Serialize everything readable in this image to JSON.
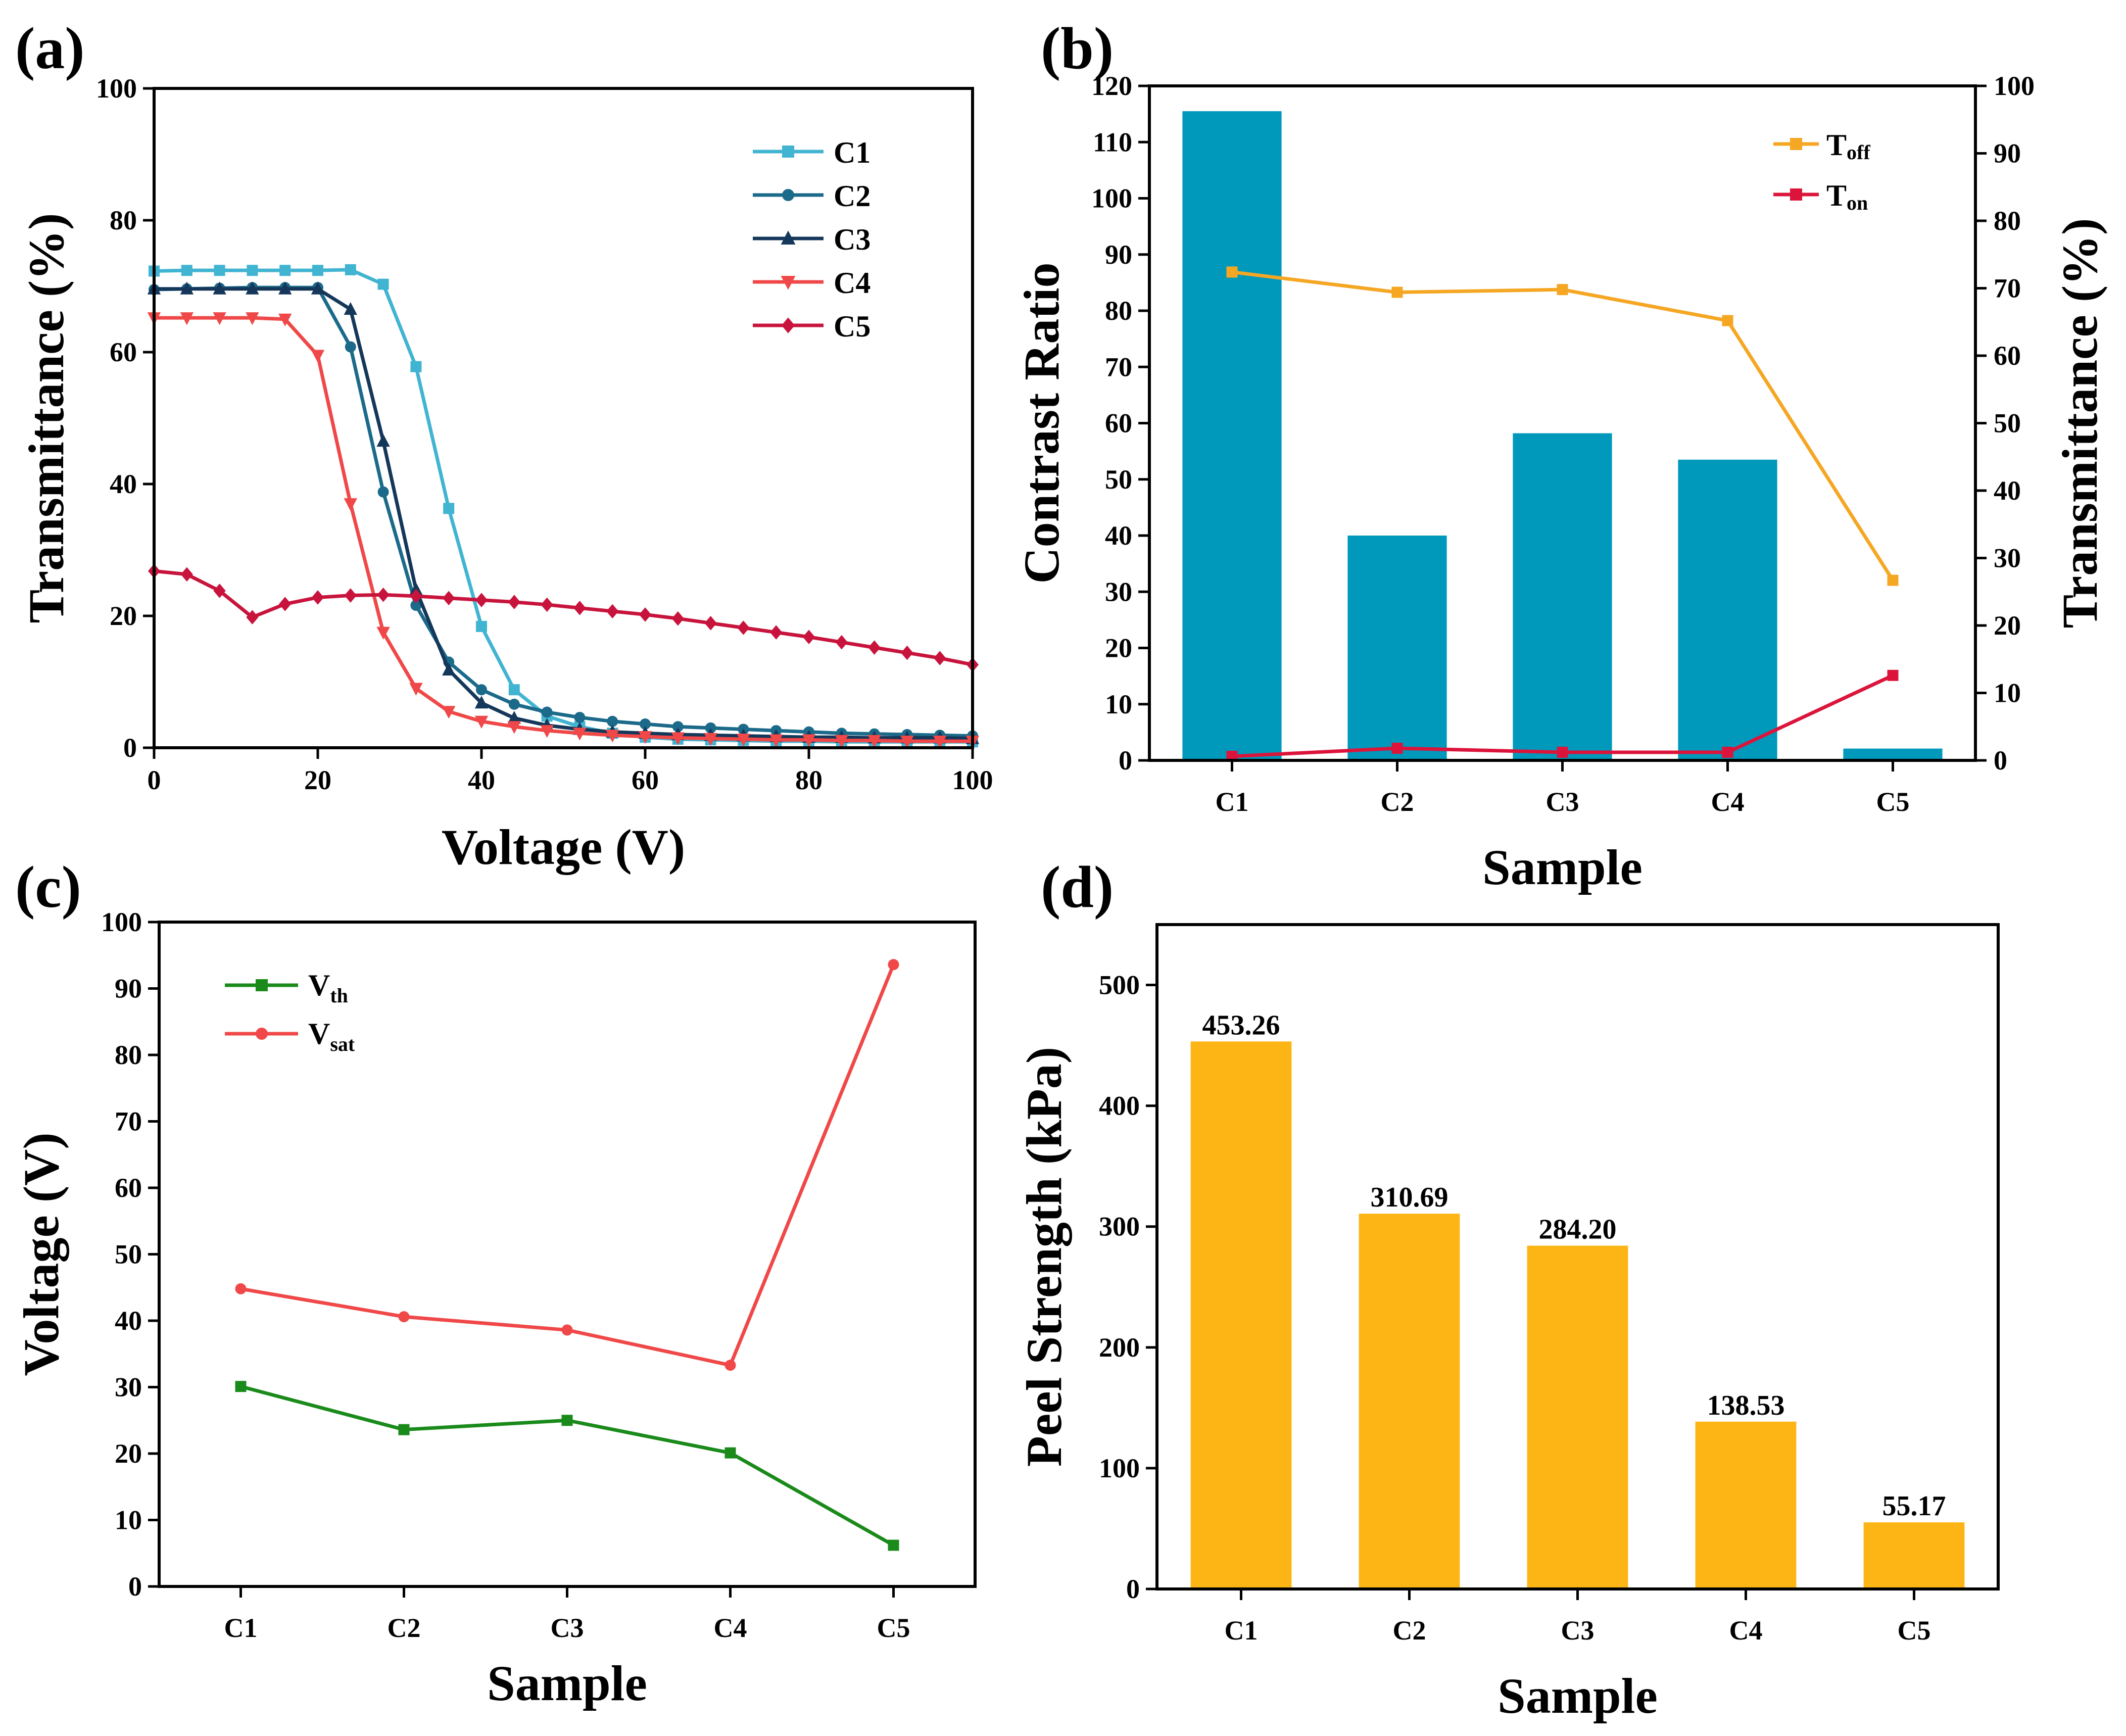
{
  "chart_data": [
    {
      "panel": "(a)",
      "type": "line",
      "xlabel": "Voltage (V)",
      "ylabel": "Transmittance (%)",
      "xlim": [
        0,
        100
      ],
      "ylim": [
        0,
        100
      ],
      "xticks": [
        0,
        20,
        40,
        60,
        80,
        100
      ],
      "yticks": [
        0,
        20,
        40,
        60,
        80,
        100
      ],
      "legend_position": "top-right",
      "series": [
        {
          "name": "C1",
          "color": "#41B4D2",
          "marker": "square",
          "x": [
            0,
            4,
            8,
            12,
            16,
            20,
            24,
            28,
            32,
            36,
            40,
            44,
            48,
            52,
            56,
            60,
            64,
            68,
            72,
            76,
            80,
            84,
            88,
            92,
            96,
            100
          ],
          "y": [
            72.3,
            72.4,
            72.4,
            72.4,
            72.4,
            72.4,
            72.5,
            70.3,
            57.8,
            36.3,
            18.4,
            8.8,
            4.8,
            3.2,
            2.2,
            1.6,
            1.3,
            1.2,
            1.1,
            1.0,
            1.0,
            0.9,
            0.9,
            0.9,
            0.9,
            0.9
          ]
        },
        {
          "name": "C2",
          "color": "#1B6A8A",
          "marker": "circle",
          "x": [
            0,
            4,
            8,
            12,
            16,
            20,
            24,
            28,
            32,
            36,
            40,
            44,
            48,
            52,
            56,
            60,
            64,
            68,
            72,
            76,
            80,
            84,
            88,
            92,
            96,
            100
          ],
          "y": [
            69.5,
            69.6,
            69.7,
            69.8,
            69.8,
            69.8,
            60.8,
            38.8,
            21.6,
            13.0,
            8.8,
            6.6,
            5.4,
            4.6,
            4.0,
            3.6,
            3.2,
            3.0,
            2.8,
            2.6,
            2.4,
            2.2,
            2.1,
            2.0,
            1.9,
            1.8
          ]
        },
        {
          "name": "C3",
          "color": "#14375A",
          "marker": "triangle-up",
          "x": [
            0,
            4,
            8,
            12,
            16,
            20,
            24,
            28,
            32,
            36,
            40,
            44,
            48,
            52,
            56,
            60,
            64,
            68,
            72,
            76,
            80,
            84,
            88,
            92,
            96,
            100
          ],
          "y": [
            69.6,
            69.6,
            69.6,
            69.6,
            69.6,
            69.6,
            66.5,
            46.5,
            24.0,
            11.8,
            6.8,
            4.5,
            3.4,
            2.8,
            2.4,
            2.2,
            2.0,
            1.9,
            1.8,
            1.7,
            1.6,
            1.6,
            1.5,
            1.5,
            1.5,
            1.4
          ]
        },
        {
          "name": "C4",
          "color": "#F04848",
          "marker": "triangle-down",
          "x": [
            0,
            4,
            8,
            12,
            16,
            20,
            24,
            28,
            32,
            36,
            40,
            44,
            48,
            52,
            56,
            60,
            64,
            68,
            72,
            76,
            80,
            84,
            88,
            92,
            96,
            100
          ],
          "y": [
            65.2,
            65.2,
            65.2,
            65.2,
            65.0,
            59.5,
            37.0,
            17.5,
            9.0,
            5.5,
            4.0,
            3.2,
            2.6,
            2.2,
            1.9,
            1.7,
            1.5,
            1.4,
            1.3,
            1.2,
            1.2,
            1.1,
            1.1,
            1.0,
            1.0,
            1.0
          ]
        },
        {
          "name": "C5",
          "color": "#C8143C",
          "marker": "diamond",
          "x": [
            0,
            4,
            8,
            12,
            16,
            20,
            24,
            28,
            32,
            36,
            40,
            44,
            48,
            52,
            56,
            60,
            64,
            68,
            72,
            76,
            80,
            84,
            88,
            92,
            96,
            100
          ],
          "y": [
            26.8,
            26.3,
            23.8,
            19.8,
            21.8,
            22.8,
            23.1,
            23.2,
            23.0,
            22.7,
            22.4,
            22.1,
            21.7,
            21.2,
            20.7,
            20.2,
            19.6,
            18.9,
            18.2,
            17.5,
            16.8,
            16.0,
            15.2,
            14.4,
            13.6,
            12.6
          ]
        }
      ]
    },
    {
      "panel": "(b)",
      "type": "bar",
      "xlabel": "Sample",
      "ylabel": "Contrast Ratio",
      "y2label": "Transmittance (%)",
      "categories": [
        "C1",
        "C2",
        "C3",
        "C4",
        "C5"
      ],
      "ylim": [
        0,
        120
      ],
      "yticks": [
        0,
        10,
        20,
        30,
        40,
        50,
        60,
        70,
        80,
        90,
        100,
        110,
        120
      ],
      "y2lim": [
        0,
        100
      ],
      "y2ticks": [
        0,
        10,
        20,
        30,
        40,
        50,
        60,
        70,
        80,
        90,
        100
      ],
      "bar_color": "#0099BB",
      "values": [
        115.5,
        40.0,
        58.2,
        53.5,
        2.1
      ],
      "legend_position": "top-right",
      "line_series": [
        {
          "name": "Toff",
          "label_main": "T",
          "label_sub": "off",
          "color": "#F5A623",
          "marker": "square",
          "axis": "right",
          "values": [
            72.4,
            69.4,
            69.8,
            65.2,
            26.7
          ]
        },
        {
          "name": "Ton",
          "label_main": "T",
          "label_sub": "on",
          "color": "#DC143C",
          "marker": "square",
          "axis": "right",
          "values": [
            0.6,
            1.8,
            1.2,
            1.2,
            12.6
          ]
        }
      ]
    },
    {
      "panel": "(c)",
      "type": "line",
      "xlabel": "Sample",
      "ylabel": "Voltage (V)",
      "categories": [
        "C1",
        "C2",
        "C3",
        "C4",
        "C5"
      ],
      "ylim": [
        0,
        100
      ],
      "yticks": [
        0,
        10,
        20,
        30,
        40,
        50,
        60,
        70,
        80,
        90,
        100
      ],
      "legend_position": "top-left",
      "series": [
        {
          "name": "Vth",
          "label_main": "V",
          "label_sub": "th",
          "color": "#1A8A1A",
          "marker": "square",
          "values": [
            30.1,
            23.6,
            25.0,
            20.1,
            6.2
          ]
        },
        {
          "name": "Vsat",
          "label_main": "V",
          "label_sub": "sat",
          "color": "#F04848",
          "marker": "circle",
          "values": [
            44.8,
            40.6,
            38.6,
            33.3,
            93.6
          ]
        }
      ]
    },
    {
      "panel": "(d)",
      "type": "bar",
      "xlabel": "Sample",
      "ylabel": "Peel Strength (kPa)",
      "categories": [
        "C1",
        "C2",
        "C3",
        "C4",
        "C5"
      ],
      "ylim": [
        0,
        550
      ],
      "yticks": [
        0,
        100,
        200,
        300,
        400,
        500
      ],
      "bar_color": "#FDB515",
      "values": [
        453.26,
        310.69,
        284.2,
        138.53,
        55.17
      ],
      "data_labels": [
        "453.26",
        "310.69",
        "284.20",
        "138.53",
        "55.17"
      ]
    }
  ]
}
